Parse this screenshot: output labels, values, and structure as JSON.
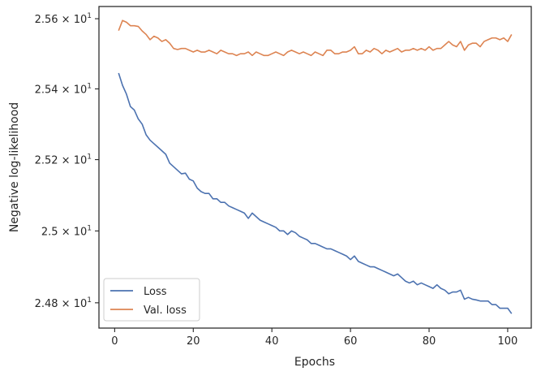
{
  "chart_data": {
    "type": "line",
    "title": "",
    "xlabel": "Epochs",
    "ylabel": "Negative log-likelihood",
    "xlim": [
      -4,
      106
    ],
    "ylim": [
      24.73,
      25.635
    ],
    "yscale": "log",
    "grid": false,
    "legend": {
      "placement": "lower-left"
    },
    "x_ticks": [
      0,
      20,
      40,
      60,
      80,
      100
    ],
    "x_tick_labels": [
      "0",
      "20",
      "40",
      "60",
      "80",
      "100"
    ],
    "y_ticks": [
      24.8,
      25.0,
      25.2,
      25.4,
      25.6
    ],
    "y_tick_labels": [
      {
        "mantissa": "2.48",
        "exponent": "1"
      },
      {
        "mantissa": "2.5",
        "exponent": "1"
      },
      {
        "mantissa": "2.52",
        "exponent": "1"
      },
      {
        "mantissa": "2.54",
        "exponent": "1"
      },
      {
        "mantissa": "2.56",
        "exponent": "1"
      }
    ],
    "x": [
      1,
      2,
      3,
      4,
      5,
      6,
      7,
      8,
      9,
      10,
      11,
      12,
      13,
      14,
      15,
      16,
      17,
      18,
      19,
      20,
      21,
      22,
      23,
      24,
      25,
      26,
      27,
      28,
      29,
      30,
      31,
      32,
      33,
      34,
      35,
      36,
      37,
      38,
      39,
      40,
      41,
      42,
      43,
      44,
      45,
      46,
      47,
      48,
      49,
      50,
      51,
      52,
      53,
      54,
      55,
      56,
      57,
      58,
      59,
      60,
      61,
      62,
      63,
      64,
      65,
      66,
      67,
      68,
      69,
      70,
      71,
      72,
      73,
      74,
      75,
      76,
      77,
      78,
      79,
      80,
      81,
      82,
      83,
      84,
      85,
      86,
      87,
      88,
      89,
      90,
      91,
      92,
      93,
      94,
      95,
      96,
      97,
      98,
      99,
      100,
      101
    ],
    "series": [
      {
        "name": "Loss",
        "color": "#4c72b0",
        "values": [
          25.445,
          25.41,
          25.385,
          25.35,
          25.34,
          25.315,
          25.3,
          25.27,
          25.255,
          25.245,
          25.235,
          25.225,
          25.215,
          25.19,
          25.18,
          25.17,
          25.16,
          25.162,
          25.145,
          25.14,
          25.12,
          25.11,
          25.105,
          25.105,
          25.09,
          25.09,
          25.08,
          25.08,
          25.07,
          25.065,
          25.06,
          25.055,
          25.05,
          25.035,
          25.05,
          25.04,
          25.03,
          25.025,
          25.02,
          25.015,
          25.01,
          25.0,
          25.0,
          24.99,
          25.0,
          24.995,
          24.985,
          24.98,
          24.975,
          24.965,
          24.965,
          24.96,
          24.955,
          24.95,
          24.95,
          24.945,
          24.94,
          24.935,
          24.93,
          24.92,
          24.93,
          24.915,
          24.91,
          24.905,
          24.9,
          24.9,
          24.895,
          24.89,
          24.885,
          24.88,
          24.875,
          24.88,
          24.87,
          24.86,
          24.855,
          24.86,
          24.85,
          24.855,
          24.85,
          24.845,
          24.84,
          24.85,
          24.84,
          24.835,
          24.825,
          24.83,
          24.83,
          24.835,
          24.81,
          24.815,
          24.81,
          24.808,
          24.805,
          24.805,
          24.805,
          24.795,
          24.795,
          24.785,
          24.785,
          24.785,
          24.77
        ]
      },
      {
        "name": "Val. loss",
        "color": "#dd8452",
        "values": [
          25.566,
          25.595,
          25.59,
          25.58,
          25.58,
          25.578,
          25.565,
          25.555,
          25.54,
          25.55,
          25.545,
          25.535,
          25.54,
          25.53,
          25.515,
          25.512,
          25.515,
          25.515,
          25.51,
          25.505,
          25.51,
          25.505,
          25.505,
          25.51,
          25.505,
          25.5,
          25.51,
          25.505,
          25.5,
          25.5,
          25.495,
          25.5,
          25.5,
          25.505,
          25.495,
          25.505,
          25.5,
          25.495,
          25.495,
          25.5,
          25.505,
          25.5,
          25.495,
          25.505,
          25.51,
          25.505,
          25.5,
          25.505,
          25.5,
          25.495,
          25.505,
          25.5,
          25.495,
          25.51,
          25.51,
          25.5,
          25.5,
          25.505,
          25.505,
          25.51,
          25.52,
          25.5,
          25.5,
          25.51,
          25.505,
          25.515,
          25.51,
          25.5,
          25.51,
          25.505,
          25.51,
          25.515,
          25.505,
          25.51,
          25.51,
          25.515,
          25.51,
          25.515,
          25.51,
          25.52,
          25.51,
          25.515,
          25.515,
          25.525,
          25.535,
          25.525,
          25.52,
          25.535,
          25.51,
          25.525,
          25.53,
          25.53,
          25.52,
          25.535,
          25.54,
          25.545,
          25.545,
          25.54,
          25.545,
          25.535,
          25.555
        ]
      }
    ]
  }
}
